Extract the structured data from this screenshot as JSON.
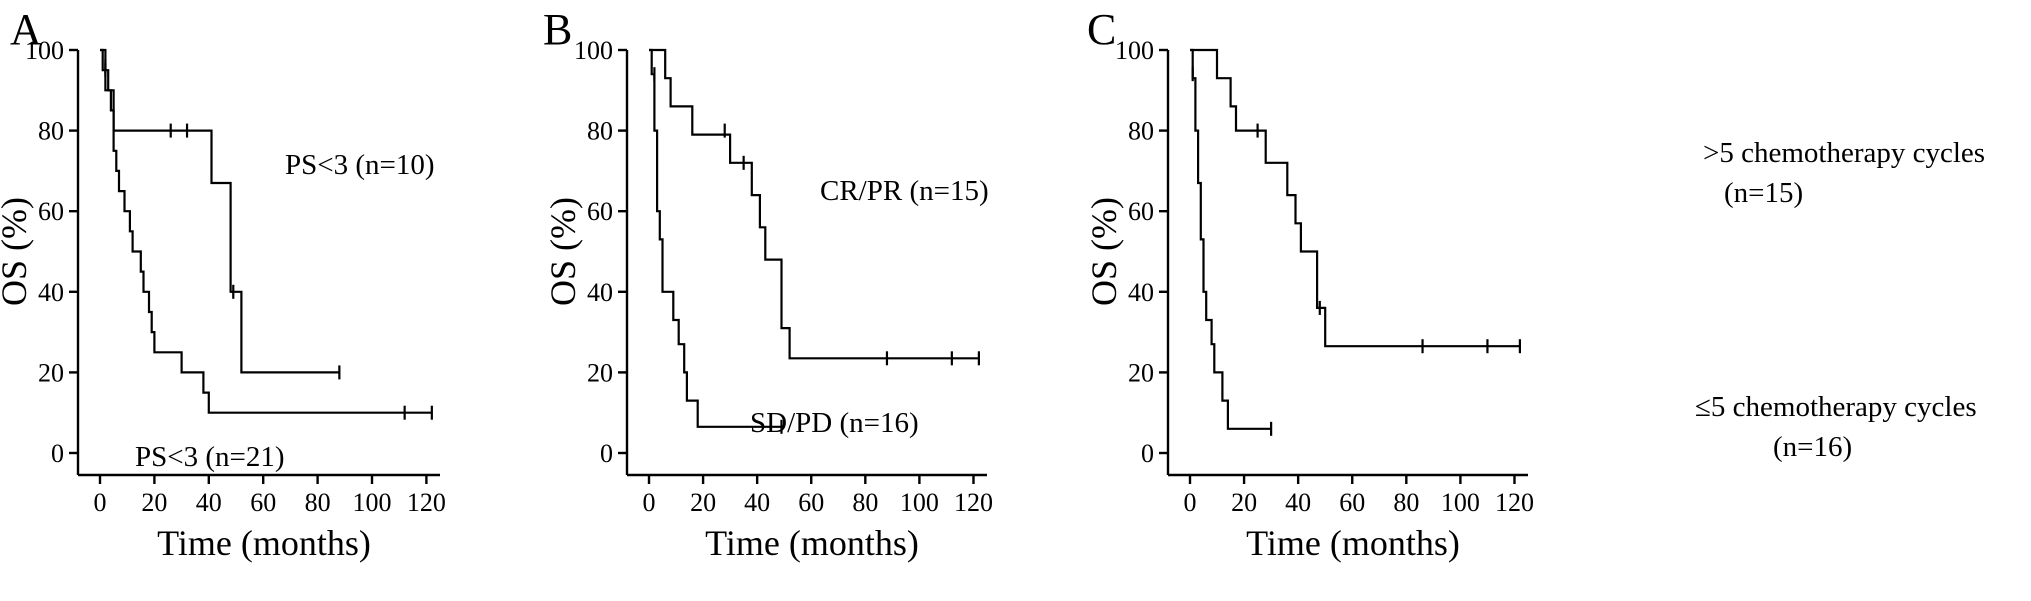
{
  "chart_data": [
    {
      "type": "line",
      "panel": "A",
      "xlabel": "Time (months)",
      "ylabel": "OS (%)",
      "xlim": [
        0,
        125
      ],
      "ylim": [
        0,
        100
      ],
      "xticks": [
        0,
        20,
        40,
        60,
        80,
        100,
        120
      ],
      "yticks": [
        0,
        20,
        40,
        60,
        80,
        100
      ],
      "series": [
        {
          "name": "PS<3 (n=10)",
          "steps": [
            [
              0,
              100
            ],
            [
              2,
              100
            ],
            [
              2,
              90
            ],
            [
              5,
              90
            ],
            [
              5,
              80
            ],
            [
              41,
              80
            ],
            [
              41,
              67
            ],
            [
              48,
              67
            ],
            [
              48,
              40
            ],
            [
              52,
              40
            ],
            [
              52,
              20
            ],
            [
              88,
              20
            ]
          ],
          "censors": [
            [
              2,
              95
            ],
            [
              26,
              80
            ],
            [
              32,
              80
            ],
            [
              49,
              40
            ],
            [
              88,
              20
            ]
          ]
        },
        {
          "name": "PS<3 (n=21)",
          "steps": [
            [
              0,
              100
            ],
            [
              1,
              100
            ],
            [
              1,
              95
            ],
            [
              3,
              95
            ],
            [
              3,
              90
            ],
            [
              4,
              90
            ],
            [
              4,
              85
            ],
            [
              5,
              85
            ],
            [
              5,
              75
            ],
            [
              6,
              75
            ],
            [
              6,
              70
            ],
            [
              7,
              70
            ],
            [
              7,
              65
            ],
            [
              9,
              65
            ],
            [
              9,
              60
            ],
            [
              11,
              60
            ],
            [
              11,
              55
            ],
            [
              12,
              55
            ],
            [
              12,
              50
            ],
            [
              15,
              50
            ],
            [
              15,
              45
            ],
            [
              16,
              45
            ],
            [
              16,
              40
            ],
            [
              18,
              40
            ],
            [
              18,
              35
            ],
            [
              19,
              35
            ],
            [
              19,
              30
            ],
            [
              20,
              30
            ],
            [
              20,
              25
            ],
            [
              30,
              25
            ],
            [
              30,
              20
            ],
            [
              38,
              20
            ],
            [
              38,
              15
            ],
            [
              40,
              15
            ],
            [
              40,
              10
            ],
            [
              122,
              10
            ]
          ],
          "censors": [
            [
              2,
              96
            ],
            [
              112,
              10
            ],
            [
              122,
              10
            ]
          ]
        }
      ]
    },
    {
      "type": "line",
      "panel": "B",
      "xlabel": "Time (months)",
      "ylabel": "OS (%)",
      "xlim": [
        0,
        125
      ],
      "ylim": [
        0,
        100
      ],
      "xticks": [
        0,
        20,
        40,
        60,
        80,
        100,
        120
      ],
      "yticks": [
        0,
        20,
        40,
        60,
        80,
        100
      ],
      "series": [
        {
          "name": "CR/PR (n=15)",
          "steps": [
            [
              0,
              100
            ],
            [
              6,
              100
            ],
            [
              6,
              93
            ],
            [
              8,
              93
            ],
            [
              8,
              86
            ],
            [
              16,
              86
            ],
            [
              16,
              79
            ],
            [
              30,
              79
            ],
            [
              30,
              72
            ],
            [
              38,
              72
            ],
            [
              38,
              64
            ],
            [
              41,
              64
            ],
            [
              41,
              56
            ],
            [
              43,
              56
            ],
            [
              43,
              48
            ],
            [
              49,
              48
            ],
            [
              49,
              31
            ],
            [
              52,
              31
            ],
            [
              52,
              23.5
            ],
            [
              122,
              23.5
            ]
          ],
          "censors": [
            [
              28,
              80
            ],
            [
              35,
              72
            ],
            [
              88,
              23.5
            ],
            [
              112,
              23.5
            ],
            [
              122,
              23.5
            ]
          ]
        },
        {
          "name": "SD/PD (n=16)",
          "steps": [
            [
              0,
              100
            ],
            [
              1,
              100
            ],
            [
              1,
              94
            ],
            [
              2,
              94
            ],
            [
              2,
              80
            ],
            [
              3,
              80
            ],
            [
              3,
              60
            ],
            [
              4,
              60
            ],
            [
              4,
              53
            ],
            [
              5,
              53
            ],
            [
              5,
              40
            ],
            [
              9,
              40
            ],
            [
              9,
              33
            ],
            [
              11,
              33
            ],
            [
              11,
              27
            ],
            [
              13,
              27
            ],
            [
              13,
              20
            ],
            [
              14,
              20
            ],
            [
              14,
              13
            ],
            [
              18,
              13
            ],
            [
              18,
              6.5
            ],
            [
              50,
              6.5
            ]
          ],
          "censors": [
            [
              2,
              94
            ],
            [
              49,
              6.5
            ]
          ]
        }
      ]
    },
    {
      "type": "line",
      "panel": "C",
      "xlabel": "Time (months)",
      "ylabel": "OS (%)",
      "xlim": [
        0,
        125
      ],
      "ylim": [
        0,
        100
      ],
      "xticks": [
        0,
        20,
        40,
        60,
        80,
        100,
        120
      ],
      "yticks": [
        0,
        20,
        40,
        60,
        80,
        100
      ],
      "series": [
        {
          "name": ">5 chemotherapy cycles (n=15)",
          "steps": [
            [
              0,
              100
            ],
            [
              10,
              100
            ],
            [
              10,
              93
            ],
            [
              15,
              93
            ],
            [
              15,
              86
            ],
            [
              17,
              86
            ],
            [
              17,
              80
            ],
            [
              28,
              80
            ],
            [
              28,
              72
            ],
            [
              36,
              72
            ],
            [
              36,
              64
            ],
            [
              39,
              64
            ],
            [
              39,
              57
            ],
            [
              41,
              57
            ],
            [
              41,
              50
            ],
            [
              47,
              50
            ],
            [
              47,
              36
            ],
            [
              50,
              36
            ],
            [
              50,
              26.5
            ],
            [
              122,
              26.5
            ]
          ],
          "censors": [
            [
              25,
              80
            ],
            [
              48,
              36
            ],
            [
              86,
              26.5
            ],
            [
              110,
              26.5
            ],
            [
              122,
              26.5
            ]
          ]
        },
        {
          "name": "≤5 chemotherapy cycles (n=16)",
          "steps": [
            [
              0,
              100
            ],
            [
              1,
              100
            ],
            [
              1,
              93
            ],
            [
              2,
              93
            ],
            [
              2,
              80
            ],
            [
              3,
              80
            ],
            [
              3,
              67
            ],
            [
              4,
              67
            ],
            [
              4,
              53
            ],
            [
              5,
              53
            ],
            [
              5,
              40
            ],
            [
              6,
              40
            ],
            [
              6,
              33
            ],
            [
              8,
              33
            ],
            [
              8,
              27
            ],
            [
              9,
              27
            ],
            [
              9,
              20
            ],
            [
              12,
              20
            ],
            [
              12,
              13
            ],
            [
              14,
              13
            ],
            [
              14,
              6
            ],
            [
              30,
              6
            ]
          ],
          "censors": [
            [
              1,
              94
            ],
            [
              30,
              6
            ]
          ]
        }
      ]
    }
  ],
  "panels": [
    {
      "letter": "A",
      "annotations": [
        "PS<3 (n=10)",
        "PS<3 (n=21)"
      ]
    },
    {
      "letter": "B",
      "annotations": [
        "CR/PR (n=15)",
        "SD/PD (n=16)"
      ]
    },
    {
      "letter": "C",
      "annotations": [
        ">5 chemotherapy cycles",
        "(n=15)",
        "≤5 chemotherapy cycles",
        "(n=16)"
      ]
    }
  ]
}
